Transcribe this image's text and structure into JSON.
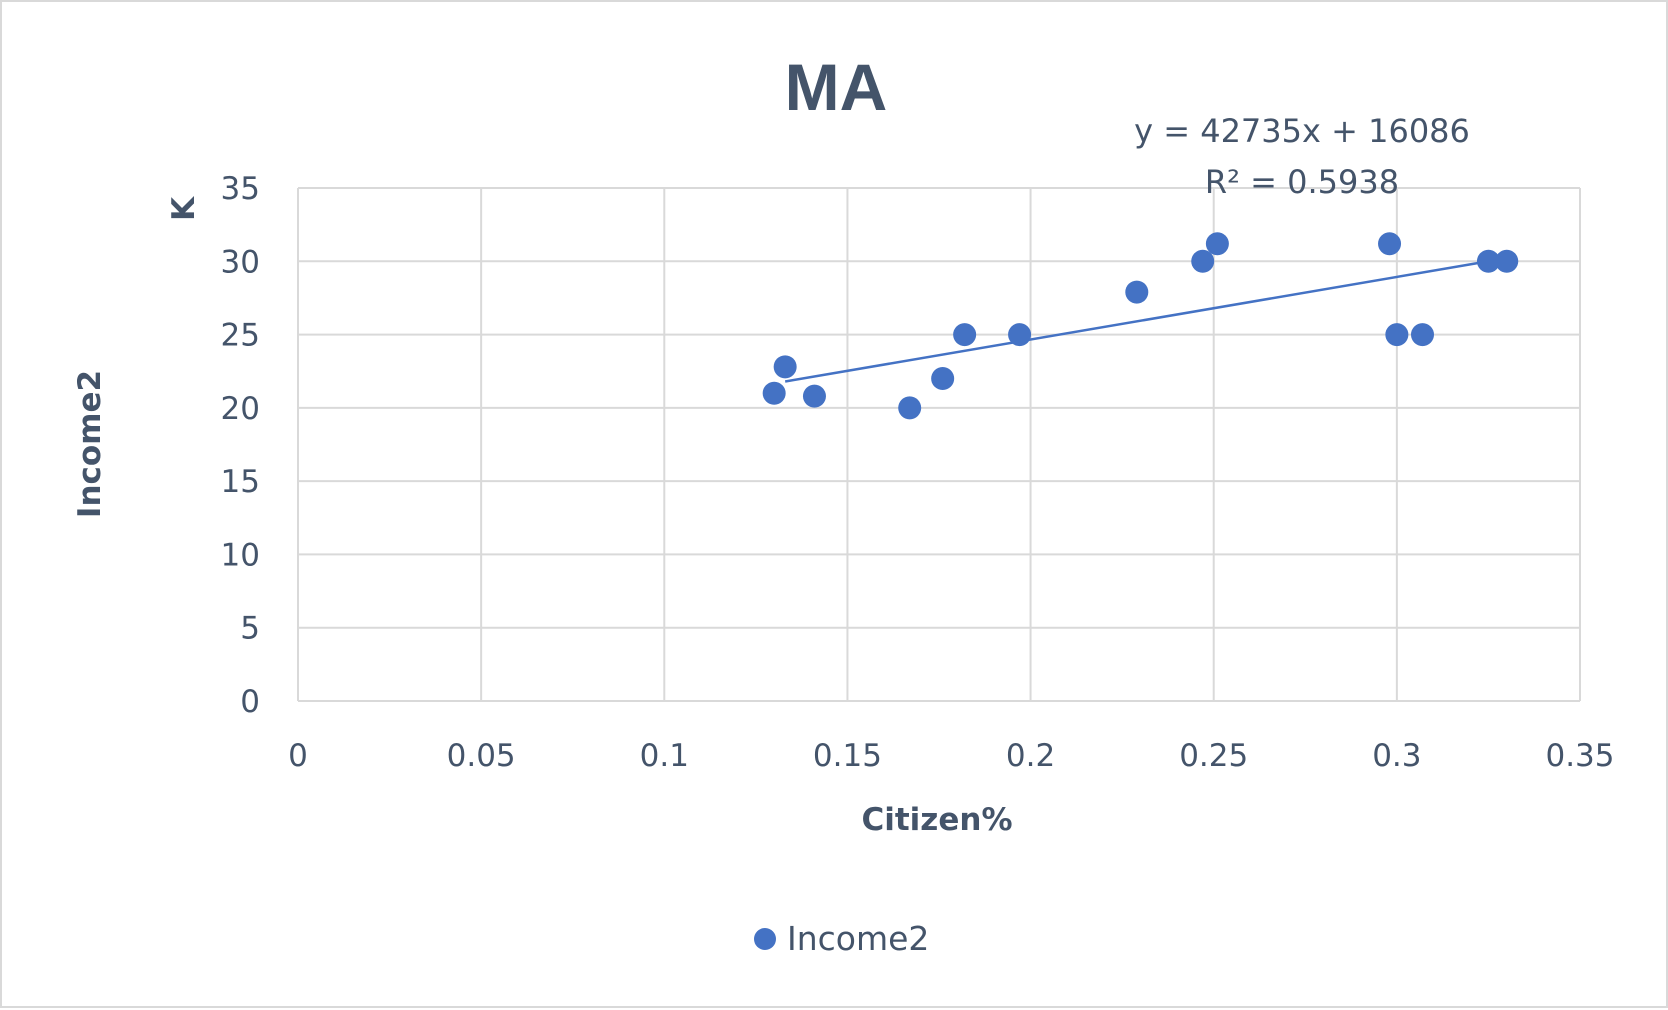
{
  "chart_data": {
    "type": "scatter",
    "title": "MA",
    "xlabel": "Citizen%",
    "ylabel": "Income2",
    "y_unit_label": "K",
    "xlim": [
      0,
      0.35
    ],
    "ylim": [
      0,
      35
    ],
    "x_ticks": [
      "0",
      "0.05",
      "0.1",
      "0.15",
      "0.2",
      "0.25",
      "0.3",
      "0.35"
    ],
    "y_ticks": [
      "0",
      "5",
      "10",
      "15",
      "20",
      "25",
      "30",
      "35"
    ],
    "grid": true,
    "legend": "bottom",
    "series": [
      {
        "name": "Income2",
        "color": "#4472c4",
        "points": [
          {
            "x": 0.13,
            "y": 21.0
          },
          {
            "x": 0.133,
            "y": 22.8
          },
          {
            "x": 0.141,
            "y": 20.8
          },
          {
            "x": 0.167,
            "y": 20.0
          },
          {
            "x": 0.176,
            "y": 22.0
          },
          {
            "x": 0.182,
            "y": 25.0
          },
          {
            "x": 0.197,
            "y": 25.0
          },
          {
            "x": 0.229,
            "y": 27.9
          },
          {
            "x": 0.247,
            "y": 30.0
          },
          {
            "x": 0.251,
            "y": 31.2
          },
          {
            "x": 0.298,
            "y": 31.2
          },
          {
            "x": 0.3,
            "y": 25.0
          },
          {
            "x": 0.307,
            "y": 25.0
          },
          {
            "x": 0.325,
            "y": 30.0
          },
          {
            "x": 0.33,
            "y": 30.0
          }
        ]
      }
    ],
    "trendline": {
      "type": "linear",
      "x_range": [
        0.133,
        0.325
      ],
      "y_values": [
        21.8,
        30.0
      ],
      "equation": "y = 42735x + 16086",
      "r_squared": "R² = 0.5938"
    }
  }
}
